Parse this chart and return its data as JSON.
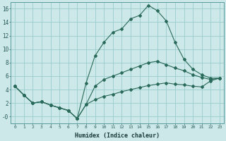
{
  "xlabel": "Humidex (Indice chaleur)",
  "bg_color": "#cce8e8",
  "grid_color": "#99cccc",
  "line_color": "#2a6a5a",
  "x": [
    0,
    1,
    2,
    3,
    4,
    5,
    6,
    7,
    8,
    9,
    10,
    11,
    12,
    13,
    14,
    15,
    16,
    17,
    18,
    19,
    20,
    21,
    22,
    23
  ],
  "y_top": [
    4.5,
    3.2,
    2.0,
    2.2,
    1.7,
    1.3,
    0.9,
    -0.3,
    5.0,
    9.0,
    11.0,
    12.5,
    13.0,
    14.5,
    15.0,
    16.5,
    15.7,
    14.2,
    11.0,
    8.5,
    7.0,
    6.2,
    5.7,
    5.7
  ],
  "y_mid": [
    4.5,
    3.2,
    2.0,
    2.2,
    1.7,
    1.3,
    0.9,
    -0.3,
    1.8,
    4.5,
    5.5,
    6.0,
    6.5,
    7.0,
    7.5,
    8.0,
    8.2,
    7.7,
    7.2,
    6.8,
    6.2,
    5.8,
    5.5,
    5.7
  ],
  "y_bot": [
    4.5,
    3.2,
    2.0,
    2.2,
    1.7,
    1.3,
    0.9,
    -0.3,
    1.8,
    2.5,
    3.0,
    3.3,
    3.7,
    4.0,
    4.3,
    4.6,
    4.8,
    5.0,
    4.8,
    4.7,
    4.5,
    4.4,
    5.3,
    5.7
  ],
  "xlim": [
    -0.5,
    23.5
  ],
  "ylim": [
    -1.0,
    17.0
  ],
  "yticks": [
    0,
    2,
    4,
    6,
    8,
    10,
    12,
    14,
    16
  ],
  "ytick_labels": [
    "-0",
    "2",
    "4",
    "6",
    "8",
    "10",
    "12",
    "14",
    "16"
  ],
  "xticks": [
    0,
    1,
    2,
    3,
    4,
    5,
    6,
    7,
    8,
    9,
    10,
    11,
    12,
    13,
    14,
    15,
    16,
    17,
    18,
    19,
    20,
    21,
    22,
    23
  ],
  "xtick_labels": [
    "0",
    "1",
    "2",
    "3",
    "4",
    "5",
    "6",
    "7",
    "8",
    "9",
    "10",
    "11",
    "12",
    "13",
    "14",
    "15",
    "16",
    "17",
    "18",
    "19",
    "20",
    "21",
    "22",
    "23"
  ]
}
